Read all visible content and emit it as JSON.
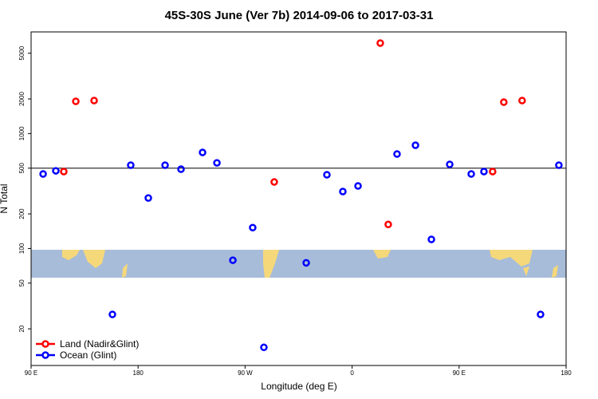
{
  "chart_data": {
    "type": "scatter",
    "title": "45S-30S June (Ver 7b)   2014-09-06 to 2017-03-31",
    "x_label": "Longitude (deg E)",
    "y_label": "N Total",
    "log_y": true,
    "legend": "bottomleft",
    "hline": 500,
    "xlim": [
      90,
      540
    ],
    "xticks": [
      {
        "value": 90,
        "label": "90 E"
      },
      180,
      {
        "value": 270,
        "label": "90 W"
      },
      {
        "value": 360,
        "label": "0"
      },
      {
        "value": 450,
        "label": "90 E"
      },
      {
        "value": 540,
        "label": "180"
      }
    ],
    "ylim": [
      9.6,
      7660
    ],
    "yticks": [
      20,
      50,
      100,
      200,
      500,
      1000,
      2000,
      5000
    ],
    "series": [
      {
        "name": "Land (Nadir&Glint)",
        "color": "#ff0000",
        "x": [
          117.5,
          127.6,
          143.0,
          294.5,
          383.7,
          390.4,
          478.2,
          487.6,
          503.0
        ],
        "values": [
          467,
          1906,
          1937,
          379,
          6125,
          162,
          467,
          1875,
          1937
        ]
      },
      {
        "name": "Ocean (Glint)",
        "color": "#0000ff",
        "x": [
          100.1,
          110.8,
          158.4,
          173.8,
          188.6,
          202.7,
          216.1,
          234.2,
          246.3,
          259.7,
          276.4,
          285.8,
          321.4,
          338.8,
          352.2,
          365.0,
          397.8,
          413.3,
          426.7,
          442.1,
          460.2,
          470.9,
          518.5,
          533.9
        ],
        "values": [
          445,
          474,
          26.7,
          531,
          275,
          531,
          490,
          685,
          556,
          79,
          152,
          13.8,
          75,
          438,
          313,
          350,
          664,
          791,
          120,
          539,
          445,
          467,
          26.7,
          531
        ]
      }
    ]
  }
}
